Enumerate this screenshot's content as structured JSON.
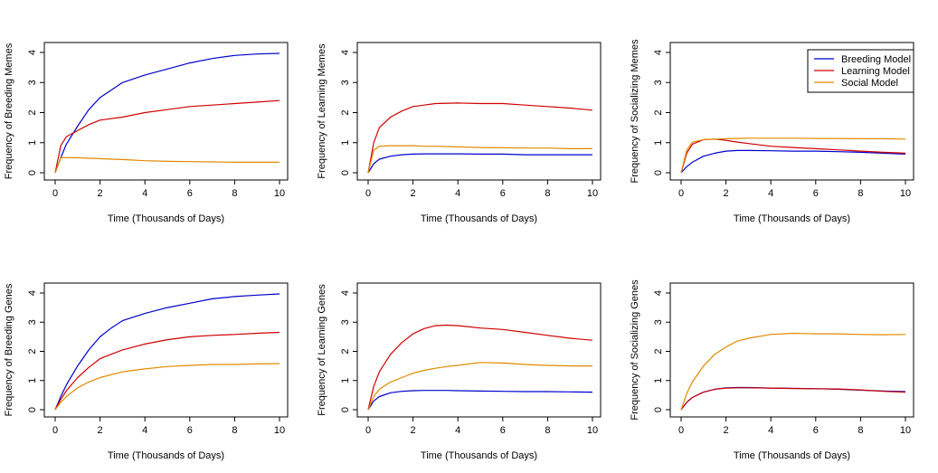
{
  "colors": {
    "breeding": "#0000CD",
    "learning": "#CD0000",
    "social": "#E08A00"
  },
  "legend": {
    "entries": [
      {
        "label": "Breeding Model",
        "color": "#0000CD"
      },
      {
        "label": "Learning Model",
        "color": "#CD0000"
      },
      {
        "label": "Social Model",
        "color": "#E08A00"
      }
    ],
    "placement": "top-right of third panel"
  },
  "chart_data": [
    {
      "type": "line",
      "title": "",
      "xlabel": "Time (Thousands of Days)",
      "ylabel": "Frequency of Breeding Memes",
      "xlim": [
        0,
        10
      ],
      "ylim": [
        0,
        4
      ],
      "xticks": [
        0,
        2,
        4,
        6,
        8,
        10
      ],
      "yticks": [
        0,
        1,
        2,
        3,
        4
      ],
      "x": [
        0,
        0.25,
        0.5,
        1,
        1.5,
        2,
        2.5,
        3,
        4,
        5,
        6,
        7,
        8,
        9,
        10
      ],
      "series": [
        {
          "name": "Breeding Model",
          "values": [
            0,
            0.5,
            0.95,
            1.55,
            2.1,
            2.5,
            2.75,
            3.0,
            3.25,
            3.45,
            3.65,
            3.8,
            3.9,
            3.95,
            3.97
          ]
        },
        {
          "name": "Learning Model",
          "values": [
            0,
            0.9,
            1.2,
            1.4,
            1.6,
            1.75,
            1.8,
            1.85,
            2.0,
            2.1,
            2.2,
            2.25,
            2.3,
            2.35,
            2.4
          ]
        },
        {
          "name": "Social Model",
          "values": [
            0,
            0.5,
            0.5,
            0.5,
            0.48,
            0.47,
            0.45,
            0.44,
            0.4,
            0.38,
            0.37,
            0.36,
            0.35,
            0.35,
            0.35
          ]
        }
      ]
    },
    {
      "type": "line",
      "title": "",
      "xlabel": "Time (Thousands of Days)",
      "ylabel": "Frequency of Learning Memes",
      "xlim": [
        0,
        10
      ],
      "ylim": [
        0,
        4
      ],
      "xticks": [
        0,
        2,
        4,
        6,
        8,
        10
      ],
      "yticks": [
        0,
        1,
        2,
        3,
        4
      ],
      "x": [
        0,
        0.25,
        0.5,
        1,
        1.5,
        2,
        2.5,
        3,
        4,
        5,
        6,
        7,
        8,
        9,
        10
      ],
      "series": [
        {
          "name": "Breeding Model",
          "values": [
            0,
            0.3,
            0.45,
            0.55,
            0.6,
            0.62,
            0.63,
            0.63,
            0.63,
            0.62,
            0.62,
            0.6,
            0.6,
            0.6,
            0.6
          ]
        },
        {
          "name": "Learning Model",
          "values": [
            0,
            1.0,
            1.5,
            1.85,
            2.05,
            2.2,
            2.25,
            2.3,
            2.32,
            2.3,
            2.3,
            2.25,
            2.2,
            2.15,
            2.08
          ]
        },
        {
          "name": "Social Model",
          "values": [
            0,
            0.75,
            0.88,
            0.9,
            0.9,
            0.9,
            0.88,
            0.88,
            0.86,
            0.84,
            0.83,
            0.82,
            0.82,
            0.8,
            0.8
          ]
        }
      ]
    },
    {
      "type": "line",
      "title": "",
      "xlabel": "Time (Thousands of Days)",
      "ylabel": "Frequency of Socializing Memes",
      "xlim": [
        0,
        10
      ],
      "ylim": [
        0,
        4
      ],
      "xticks": [
        0,
        2,
        4,
        6,
        8,
        10
      ],
      "yticks": [
        0,
        1,
        2,
        3,
        4
      ],
      "x": [
        0,
        0.25,
        0.5,
        1,
        1.5,
        2,
        2.5,
        3,
        4,
        5,
        6,
        7,
        8,
        9,
        10
      ],
      "series": [
        {
          "name": "Breeding Model",
          "values": [
            0,
            0.2,
            0.35,
            0.55,
            0.65,
            0.72,
            0.74,
            0.74,
            0.73,
            0.72,
            0.72,
            0.7,
            0.68,
            0.65,
            0.62
          ]
        },
        {
          "name": "Learning Model",
          "values": [
            0,
            0.65,
            0.95,
            1.1,
            1.12,
            1.08,
            1.02,
            0.97,
            0.88,
            0.84,
            0.8,
            0.76,
            0.72,
            0.68,
            0.65
          ]
        },
        {
          "name": "Social Model",
          "values": [
            0,
            0.75,
            1.02,
            1.1,
            1.12,
            1.13,
            1.14,
            1.15,
            1.15,
            1.15,
            1.14,
            1.14,
            1.13,
            1.13,
            1.12
          ]
        }
      ]
    },
    {
      "type": "line",
      "title": "",
      "xlabel": "Time (Thousands of Days)",
      "ylabel": "Frequency of Breeding Genes",
      "xlim": [
        0,
        10
      ],
      "ylim": [
        0,
        4
      ],
      "xticks": [
        0,
        2,
        4,
        6,
        8,
        10
      ],
      "yticks": [
        0,
        1,
        2,
        3,
        4
      ],
      "x": [
        0,
        0.25,
        0.5,
        1,
        1.5,
        2,
        2.5,
        3,
        4,
        5,
        6,
        7,
        8,
        9,
        10
      ],
      "series": [
        {
          "name": "Breeding Model",
          "values": [
            0,
            0.45,
            0.85,
            1.5,
            2.05,
            2.5,
            2.8,
            3.05,
            3.3,
            3.5,
            3.65,
            3.8,
            3.88,
            3.93,
            3.97
          ]
        },
        {
          "name": "Learning Model",
          "values": [
            0,
            0.35,
            0.65,
            1.1,
            1.45,
            1.75,
            1.9,
            2.05,
            2.25,
            2.4,
            2.5,
            2.55,
            2.58,
            2.62,
            2.65
          ]
        },
        {
          "name": "Social Model",
          "values": [
            0,
            0.25,
            0.45,
            0.75,
            0.95,
            1.1,
            1.2,
            1.3,
            1.4,
            1.48,
            1.52,
            1.55,
            1.55,
            1.57,
            1.58
          ]
        }
      ]
    },
    {
      "type": "line",
      "title": "",
      "xlabel": "Time (Thousands of Days)",
      "ylabel": "Frequency of Learning Genes",
      "xlim": [
        0,
        10
      ],
      "ylim": [
        0,
        4
      ],
      "xticks": [
        0,
        2,
        4,
        6,
        8,
        10
      ],
      "yticks": [
        0,
        1,
        2,
        3,
        4
      ],
      "x": [
        0,
        0.25,
        0.5,
        1,
        1.5,
        2,
        2.5,
        3,
        3.5,
        4,
        5,
        6,
        7,
        8,
        9,
        10
      ],
      "series": [
        {
          "name": "Breeding Model",
          "values": [
            0,
            0.3,
            0.45,
            0.58,
            0.63,
            0.65,
            0.66,
            0.66,
            0.66,
            0.65,
            0.64,
            0.63,
            0.62,
            0.62,
            0.61,
            0.6
          ]
        },
        {
          "name": "Learning Model",
          "values": [
            0,
            0.8,
            1.3,
            1.9,
            2.3,
            2.6,
            2.78,
            2.88,
            2.9,
            2.88,
            2.8,
            2.75,
            2.65,
            2.55,
            2.45,
            2.38
          ]
        },
        {
          "name": "Social Model",
          "values": [
            0,
            0.45,
            0.7,
            0.95,
            1.1,
            1.25,
            1.35,
            1.42,
            1.48,
            1.52,
            1.62,
            1.6,
            1.55,
            1.52,
            1.5,
            1.5
          ]
        }
      ]
    },
    {
      "type": "line",
      "title": "",
      "xlabel": "Time (Thousands of Days)",
      "ylabel": "Frequency of Socializing Genes",
      "xlim": [
        0,
        10
      ],
      "ylim": [
        0,
        4
      ],
      "xticks": [
        0,
        2,
        4,
        6,
        8,
        10
      ],
      "yticks": [
        0,
        1,
        2,
        3,
        4
      ],
      "x": [
        0,
        0.25,
        0.5,
        1,
        1.5,
        2,
        2.5,
        3,
        4,
        5,
        6,
        7,
        8,
        9,
        10
      ],
      "series": [
        {
          "name": "Breeding Model",
          "values": [
            0,
            0.25,
            0.42,
            0.6,
            0.7,
            0.75,
            0.76,
            0.76,
            0.74,
            0.73,
            0.72,
            0.7,
            0.67,
            0.64,
            0.62
          ]
        },
        {
          "name": "Learning Model",
          "values": [
            0,
            0.25,
            0.42,
            0.6,
            0.7,
            0.74,
            0.75,
            0.75,
            0.74,
            0.73,
            0.72,
            0.71,
            0.68,
            0.63,
            0.6
          ]
        },
        {
          "name": "Social Model",
          "values": [
            0,
            0.55,
            0.95,
            1.5,
            1.9,
            2.15,
            2.35,
            2.45,
            2.58,
            2.62,
            2.6,
            2.6,
            2.58,
            2.57,
            2.58
          ]
        }
      ]
    }
  ]
}
